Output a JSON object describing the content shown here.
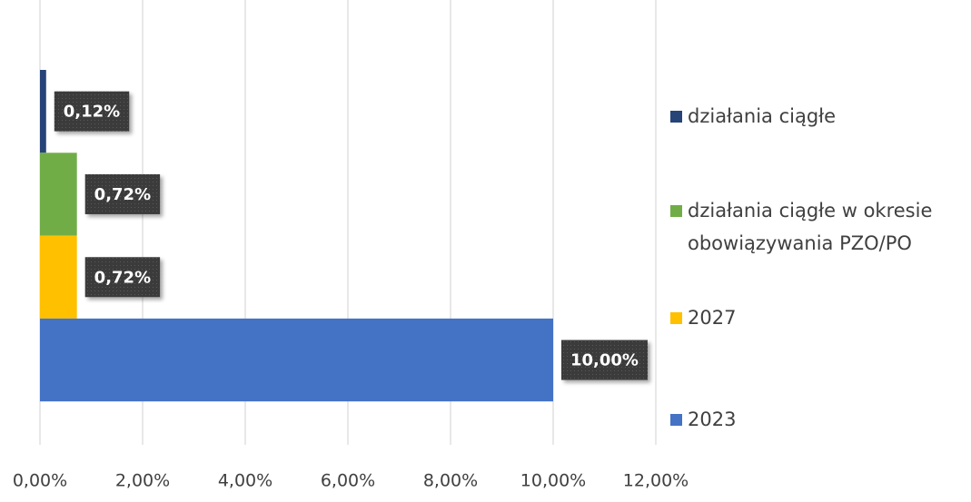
{
  "chart_data": {
    "type": "bar",
    "orientation": "horizontal",
    "series": [
      {
        "name": "działania ciągłe",
        "color": "#264478",
        "values": [
          0.12
        ],
        "value_labels": [
          "0,12%"
        ]
      },
      {
        "name": "działania ciągłe w okresie obowiązywania PZO/PO",
        "color": "#70ad47",
        "values": [
          0.72
        ],
        "value_labels": [
          "0,72%"
        ]
      },
      {
        "name": "2027",
        "color": "#ffc000",
        "values": [
          0.72
        ],
        "value_labels": [
          "0,72%"
        ]
      },
      {
        "name": "2023",
        "color": "#4472c4",
        "values": [
          10.0
        ],
        "value_labels": [
          "10,00%"
        ]
      }
    ],
    "xlim": [
      0,
      12
    ],
    "xticks": [
      {
        "value": 0,
        "label": "0,00%"
      },
      {
        "value": 2,
        "label": "2,00%"
      },
      {
        "value": 4,
        "label": "4,00%"
      },
      {
        "value": 6,
        "label": "6,00%"
      },
      {
        "value": 8,
        "label": "8,00%"
      },
      {
        "value": 10,
        "label": "10,00%"
      },
      {
        "value": 12,
        "label": "12,00%"
      }
    ],
    "grid": true,
    "legend": "right"
  }
}
